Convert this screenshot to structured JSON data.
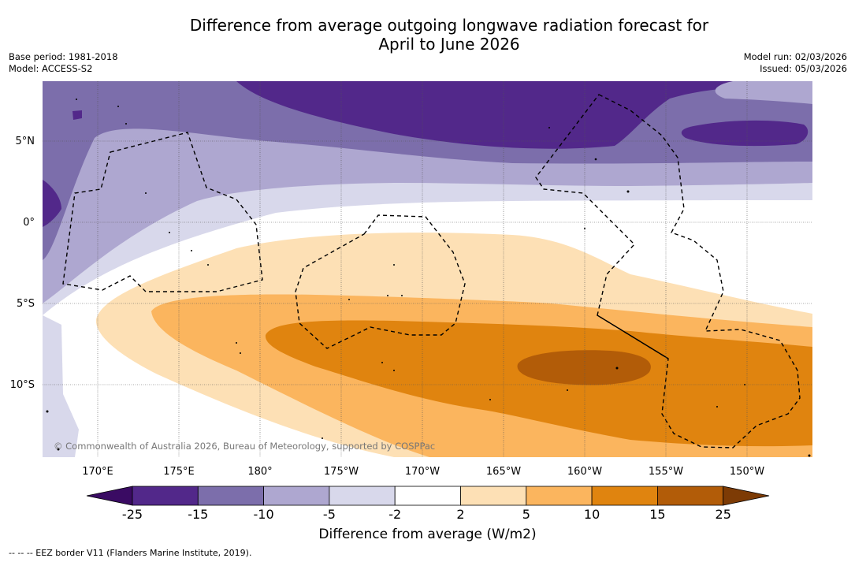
{
  "header": {
    "title_line1": "Difference from average outgoing longwave radiation forecast for",
    "title_line2": "April to June 2026",
    "base_period": "Base period: 1981-2018",
    "model": "Model: ACCESS-S2",
    "model_run": "Model run: 02/03/2026",
    "issued": "Issued: 05/03/2026"
  },
  "map": {
    "copyright": "© Commonwealth of Australia 2026, Bureau of Meteorology, supported by COSPPac",
    "lat_labels": [
      "5°N",
      "0°",
      "5°S",
      "10°S"
    ],
    "lon_labels": [
      "170°E",
      "175°E",
      "180°",
      "175°W",
      "170°W",
      "165°W",
      "160°W",
      "155°W",
      "150°W"
    ]
  },
  "colorbar": {
    "label": "Difference from average (W/m2)",
    "ticks": [
      "-25",
      "-15",
      "-10",
      "-5",
      "-2",
      "2",
      "5",
      "10",
      "15",
      "25"
    ],
    "colors": [
      "#52288a",
      "#7c6eab",
      "#aea7d0",
      "#d8d8eb",
      "#ffffff",
      "#fde0b5",
      "#fbb55e",
      "#e0840f",
      "#b25c08"
    ],
    "under_color": "#3a0b63",
    "over_color": "#7d3b05"
  },
  "footer": {
    "note": "--  --  -- EEZ border V11 (Flanders Marine Institute, 2019)."
  }
}
